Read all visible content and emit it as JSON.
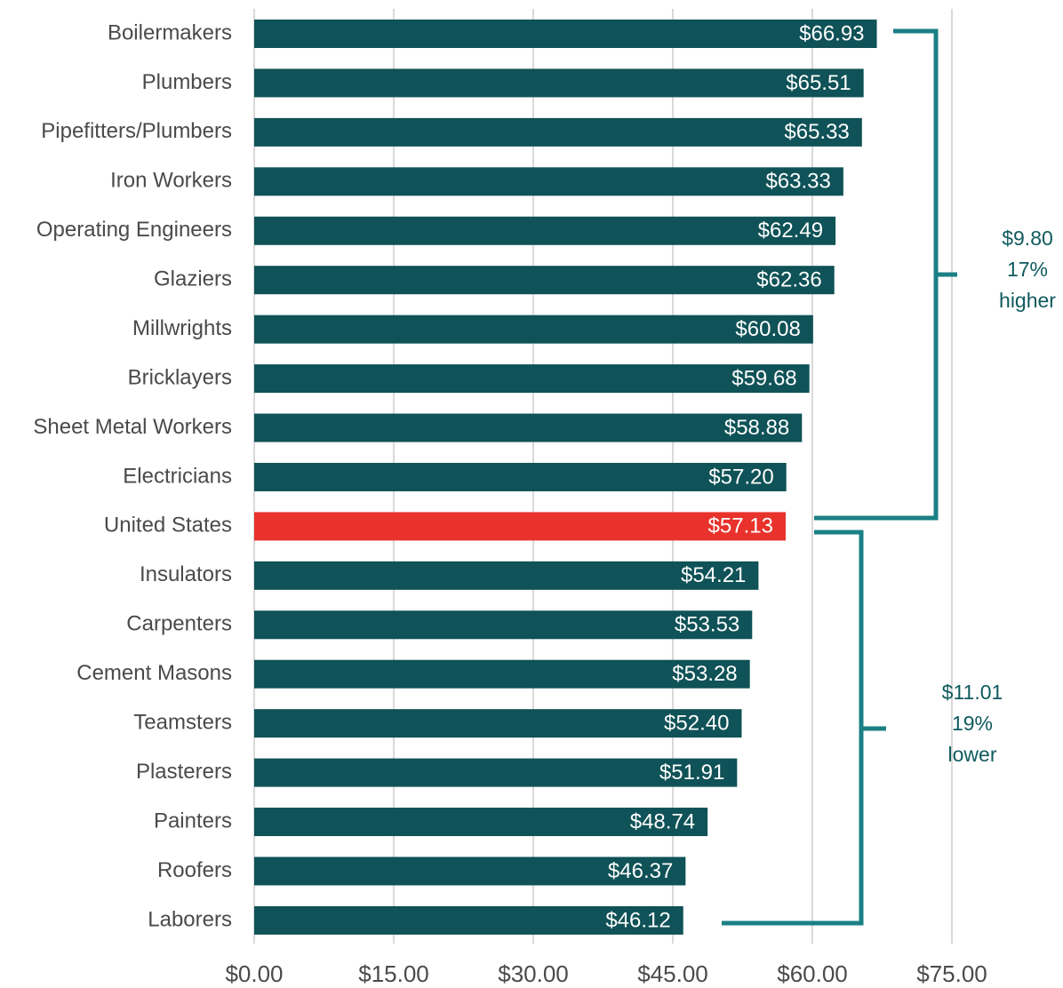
{
  "chart_data": {
    "type": "bar",
    "orientation": "horizontal",
    "categories": [
      "Boilermakers",
      "Plumbers",
      "Pipefitters/Plumbers",
      "Iron Workers",
      "Operating Engineers",
      "Glaziers",
      "Millwrights",
      "Bricklayers",
      "Sheet Metal Workers",
      "Electricians",
      "United States",
      "Insulators",
      "Carpenters",
      "Cement Masons",
      "Teamsters",
      "Plasterers",
      "Painters",
      "Roofers",
      "Laborers"
    ],
    "values": [
      66.93,
      65.51,
      65.33,
      63.33,
      62.49,
      62.36,
      60.08,
      59.68,
      58.88,
      57.2,
      57.13,
      54.21,
      53.53,
      53.28,
      52.4,
      51.91,
      48.74,
      46.37,
      46.12
    ],
    "value_labels": [
      "$66.93",
      "$65.51",
      "$65.33",
      "$63.33",
      "$62.49",
      "$62.36",
      "$60.08",
      "$59.68",
      "$58.88",
      "$57.20",
      "$57.13",
      "$54.21",
      "$53.53",
      "$53.28",
      "$52.40",
      "$51.91",
      "$48.74",
      "$46.37",
      "$46.12"
    ],
    "colors": [
      "#0f5257",
      "#0f5257",
      "#0f5257",
      "#0f5257",
      "#0f5257",
      "#0f5257",
      "#0f5257",
      "#0f5257",
      "#0f5257",
      "#0f5257",
      "#e8322b",
      "#0f5257",
      "#0f5257",
      "#0f5257",
      "#0f5257",
      "#0f5257",
      "#0f5257",
      "#0f5257",
      "#0f5257"
    ],
    "xlim": [
      0,
      75
    ],
    "xticks": [
      {
        "value": 0,
        "label": "$0.00"
      },
      {
        "value": 15,
        "label": "$15.00"
      },
      {
        "value": 30,
        "label": "$30.00"
      },
      {
        "value": 45,
        "label": "$45.00"
      },
      {
        "value": 60,
        "label": "$60.00"
      },
      {
        "value": 75,
        "label": "$75.00"
      }
    ],
    "grid": true,
    "annotations": [
      {
        "lines": [
          "$9.80",
          "17%",
          "higher"
        ]
      },
      {
        "lines": [
          "$11.01",
          "19%",
          "lower"
        ]
      }
    ]
  }
}
